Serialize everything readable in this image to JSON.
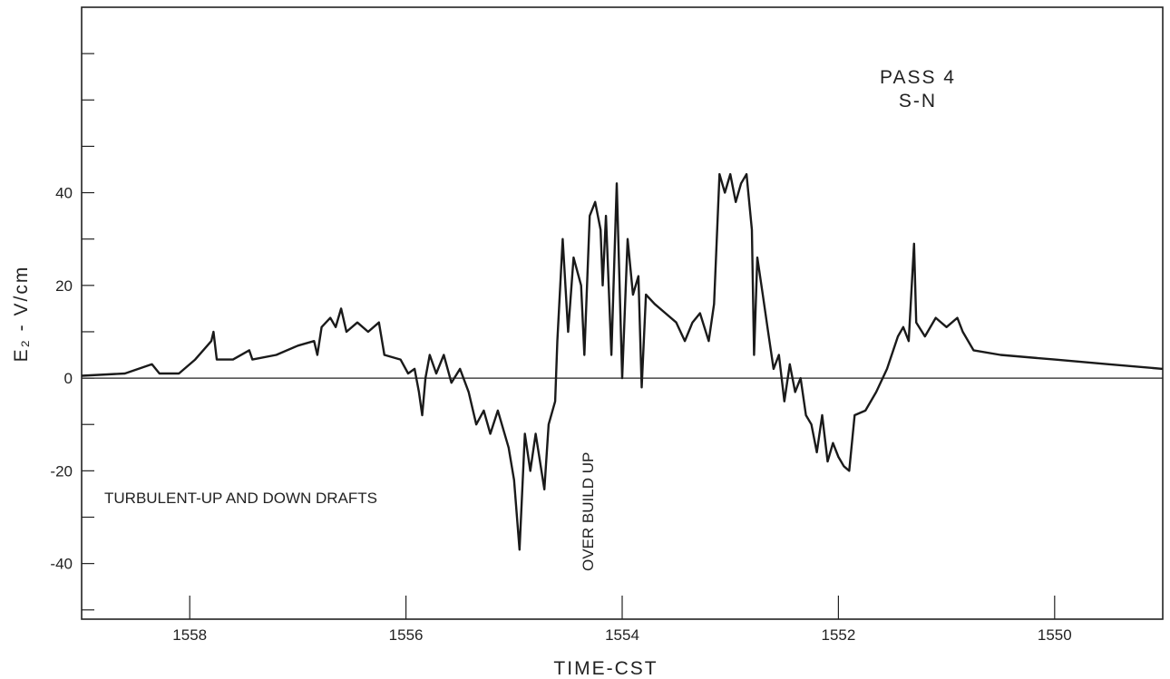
{
  "chart_data": {
    "type": "line",
    "title": "",
    "xlabel": "TIME-CST",
    "ylabel": "E₂ - V/cm",
    "xlim": [
      1559,
      1549
    ],
    "ylim": [
      -52,
      80
    ],
    "x_reversed": true,
    "x_ticks": [
      1558,
      1556,
      1554,
      1552,
      1550
    ],
    "x_tick_labels": [
      "1558",
      "1556",
      "1554",
      "1552",
      "1550"
    ],
    "y_ticks": [
      -40,
      -20,
      0,
      20,
      40
    ],
    "y_tick_labels": [
      "-40",
      "-20",
      "0",
      "20",
      "40"
    ],
    "y_minor_ticks": [
      -50,
      -30,
      -10,
      10,
      30,
      50,
      60,
      70
    ],
    "grid": false,
    "zero_line": true,
    "annotations": [
      {
        "text": "PASS 4",
        "kind": "legend"
      },
      {
        "text": "S-N",
        "kind": "legend"
      },
      {
        "text": "TURBULENT-UP AND DOWN DRAFTS",
        "kind": "note"
      },
      {
        "text": "OVER BUILD UP",
        "kind": "vertical-note"
      }
    ],
    "series": [
      {
        "values": [
          [
            1559.0,
            0.5
          ],
          [
            1558.6,
            1
          ],
          [
            1558.35,
            3
          ],
          [
            1558.28,
            1
          ],
          [
            1558.1,
            1
          ],
          [
            1557.95,
            4
          ],
          [
            1557.8,
            8
          ],
          [
            1557.78,
            10
          ],
          [
            1557.75,
            4
          ],
          [
            1557.6,
            4
          ],
          [
            1557.45,
            6
          ],
          [
            1557.42,
            4
          ],
          [
            1557.2,
            5
          ],
          [
            1557.0,
            7
          ],
          [
            1556.85,
            8
          ],
          [
            1556.82,
            5
          ],
          [
            1556.78,
            11
          ],
          [
            1556.7,
            13
          ],
          [
            1556.65,
            11
          ],
          [
            1556.6,
            15
          ],
          [
            1556.55,
            10
          ],
          [
            1556.45,
            12
          ],
          [
            1556.35,
            10
          ],
          [
            1556.25,
            12
          ],
          [
            1556.2,
            5
          ],
          [
            1556.05,
            4
          ],
          [
            1555.98,
            1
          ],
          [
            1555.92,
            2
          ],
          [
            1555.88,
            -3
          ],
          [
            1555.85,
            -8
          ],
          [
            1555.82,
            0
          ],
          [
            1555.78,
            5
          ],
          [
            1555.72,
            1
          ],
          [
            1555.65,
            5
          ],
          [
            1555.58,
            -1
          ],
          [
            1555.5,
            2
          ],
          [
            1555.42,
            -3
          ],
          [
            1555.35,
            -10
          ],
          [
            1555.28,
            -7
          ],
          [
            1555.22,
            -12
          ],
          [
            1555.15,
            -7
          ],
          [
            1555.05,
            -15
          ],
          [
            1555.0,
            -22
          ],
          [
            1554.95,
            -37
          ],
          [
            1554.9,
            -12
          ],
          [
            1554.85,
            -20
          ],
          [
            1554.8,
            -12
          ],
          [
            1554.72,
            -24
          ],
          [
            1554.68,
            -10
          ],
          [
            1554.62,
            -5
          ],
          [
            1554.6,
            8
          ],
          [
            1554.55,
            30
          ],
          [
            1554.5,
            10
          ],
          [
            1554.45,
            26
          ],
          [
            1554.38,
            20
          ],
          [
            1554.35,
            5
          ],
          [
            1554.3,
            35
          ],
          [
            1554.25,
            38
          ],
          [
            1554.2,
            32
          ],
          [
            1554.18,
            20
          ],
          [
            1554.15,
            35
          ],
          [
            1554.1,
            5
          ],
          [
            1554.05,
            42
          ],
          [
            1554.0,
            0
          ],
          [
            1553.95,
            30
          ],
          [
            1553.9,
            18
          ],
          [
            1553.85,
            22
          ],
          [
            1553.82,
            -2
          ],
          [
            1553.78,
            18
          ],
          [
            1553.7,
            16
          ],
          [
            1553.6,
            14
          ],
          [
            1553.5,
            12
          ],
          [
            1553.42,
            8
          ],
          [
            1553.35,
            12
          ],
          [
            1553.28,
            14
          ],
          [
            1553.2,
            8
          ],
          [
            1553.15,
            16
          ],
          [
            1553.1,
            44
          ],
          [
            1553.05,
            40
          ],
          [
            1553.0,
            44
          ],
          [
            1552.95,
            38
          ],
          [
            1552.9,
            42
          ],
          [
            1552.85,
            44
          ],
          [
            1552.8,
            32
          ],
          [
            1552.78,
            5
          ],
          [
            1552.75,
            26
          ],
          [
            1552.7,
            18
          ],
          [
            1552.65,
            10
          ],
          [
            1552.6,
            2
          ],
          [
            1552.55,
            5
          ],
          [
            1552.5,
            -5
          ],
          [
            1552.45,
            3
          ],
          [
            1552.4,
            -3
          ],
          [
            1552.35,
            0
          ],
          [
            1552.3,
            -8
          ],
          [
            1552.25,
            -10
          ],
          [
            1552.2,
            -16
          ],
          [
            1552.15,
            -8
          ],
          [
            1552.1,
            -18
          ],
          [
            1552.05,
            -14
          ],
          [
            1552.0,
            -17
          ],
          [
            1551.95,
            -19
          ],
          [
            1551.9,
            -20
          ],
          [
            1551.85,
            -8
          ],
          [
            1551.75,
            -7
          ],
          [
            1551.65,
            -3
          ],
          [
            1551.55,
            2
          ],
          [
            1551.45,
            9
          ],
          [
            1551.4,
            11
          ],
          [
            1551.35,
            8
          ],
          [
            1551.3,
            29
          ],
          [
            1551.28,
            12
          ],
          [
            1551.2,
            9
          ],
          [
            1551.1,
            13
          ],
          [
            1551.0,
            11
          ],
          [
            1550.9,
            13
          ],
          [
            1550.85,
            10
          ],
          [
            1550.75,
            6
          ],
          [
            1550.5,
            5
          ],
          [
            1550.0,
            4
          ],
          [
            1549.5,
            3
          ],
          [
            1549.0,
            2
          ]
        ]
      }
    ]
  }
}
